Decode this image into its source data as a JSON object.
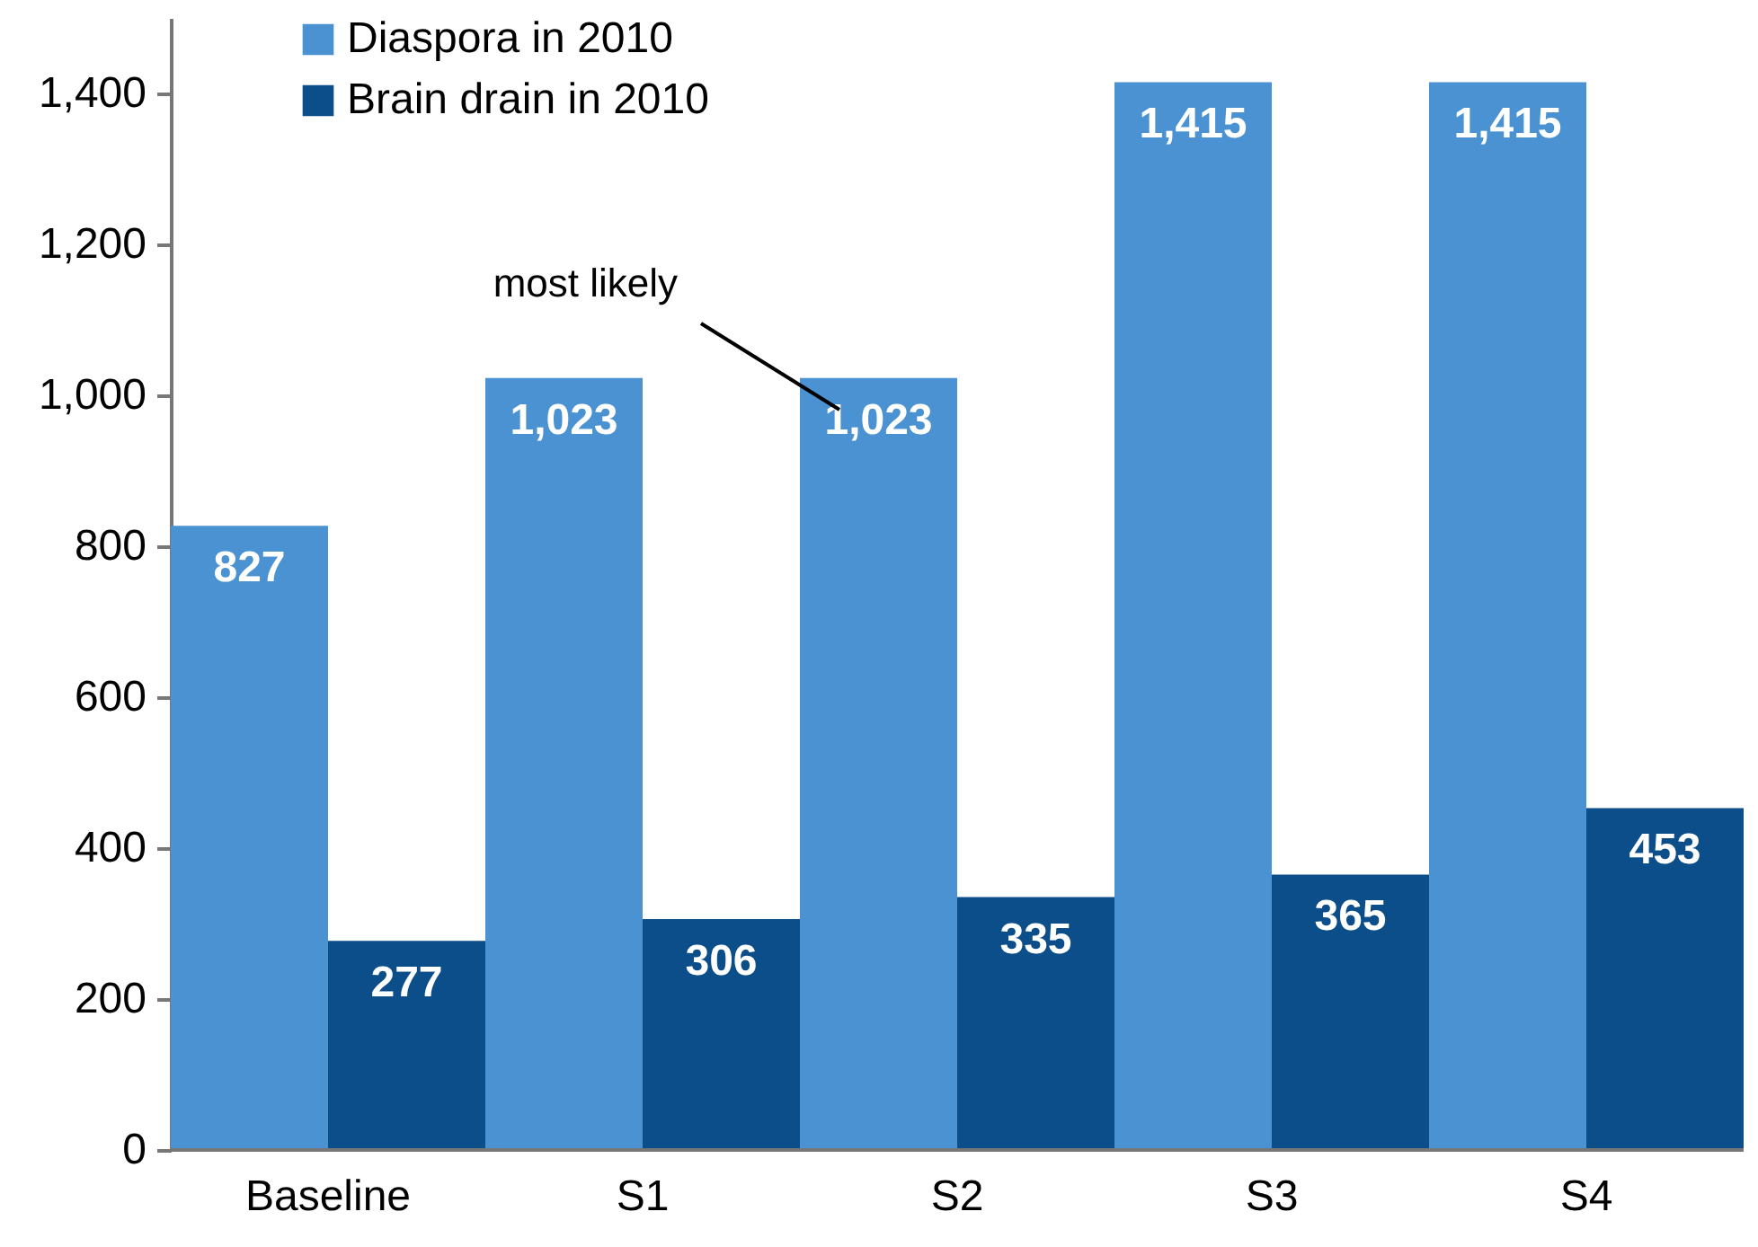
{
  "chart_data": {
    "type": "bar",
    "categories": [
      "Baseline",
      "S1",
      "S2",
      "S3",
      "S4"
    ],
    "series": [
      {
        "name": "Diaspora in 2010",
        "color": "#4a92d2",
        "values": [
          827,
          1023,
          1023,
          1415,
          1415
        ],
        "value_labels": [
          "827",
          "1,023",
          "1,023",
          "1,415",
          "1,415"
        ]
      },
      {
        "name": "Brain drain in 2010",
        "color": "#0b4e8a",
        "values": [
          277,
          306,
          335,
          365,
          453
        ],
        "value_labels": [
          "277",
          "306",
          "335",
          "365",
          "453"
        ]
      }
    ],
    "ylim": [
      0,
      1500
    ],
    "yticks": [
      0,
      200,
      400,
      600,
      800,
      {
        "value": 1000,
        "label": "1,000"
      },
      {
        "value": 1200,
        "label": "1,200"
      },
      {
        "value": 1400,
        "label": "1,400"
      }
    ],
    "annotations": [
      "most likely"
    ],
    "legend": "top left",
    "grid": false
  }
}
